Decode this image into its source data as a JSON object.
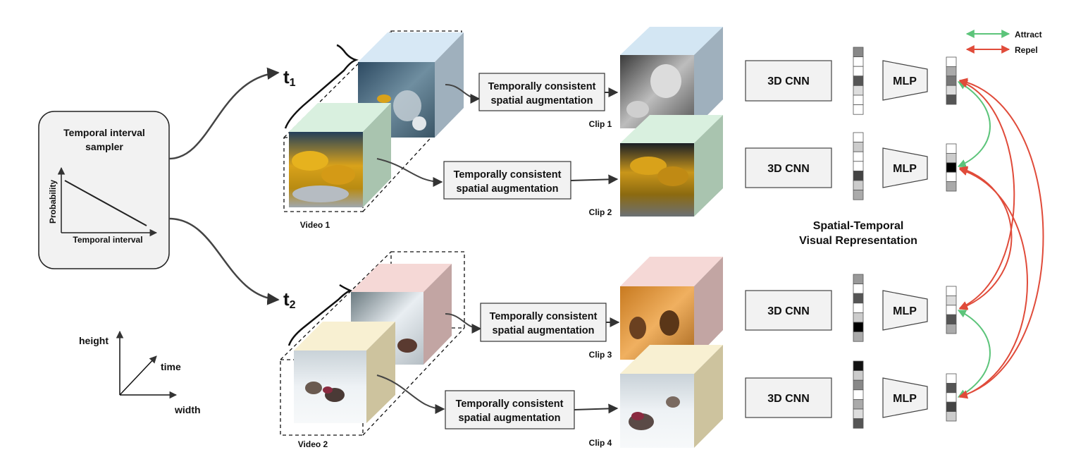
{
  "sampler": {
    "title_line1": "Temporal interval",
    "title_line2": "sampler",
    "y_axis_label": "Probability",
    "x_axis_label": "Temporal interval"
  },
  "intervals": {
    "t1": "t",
    "t1_sub": "1",
    "t2": "t",
    "t2_sub": "2"
  },
  "videos": {
    "video1": "Video 1",
    "video2": "Video 2"
  },
  "augmentation": {
    "line1": "Temporally consistent",
    "line2": "spatial augmentation"
  },
  "clips": [
    "Clip 1",
    "Clip 2",
    "Clip 3",
    "Clip 4"
  ],
  "encoder": {
    "cnn_label": "3D CNN",
    "mlp_label": "MLP"
  },
  "representation": {
    "line1": "Spatial-Temporal",
    "line2": "Visual Representation"
  },
  "legend": {
    "attract": "Attract",
    "repel": "Repel",
    "attract_color": "#5cc47a",
    "repel_color": "#e04b3a"
  },
  "axes": {
    "height": "height",
    "time": "time",
    "width": "width"
  },
  "feature_vectors": {
    "embedding_cells": [
      [
        "#888888",
        "#ffffff",
        "#ffffff",
        "#555555",
        "#dddddd",
        "#ffffff",
        "#ffffff"
      ],
      [
        "#ffffff",
        "#cccccc",
        "#ffffff",
        "#ffffff",
        "#444444",
        "#cccccc",
        "#aaaaaa"
      ],
      [
        "#999999",
        "#ffffff",
        "#555555",
        "#ffffff",
        "#cccccc",
        "#000000",
        "#aaaaaa"
      ],
      [
        "#111111",
        "#cccccc",
        "#888888",
        "#ffffff",
        "#aaaaaa",
        "#dddddd",
        "#555555"
      ]
    ],
    "projection_cells": [
      [
        "#ffffff",
        "#aaaaaa",
        "#777777",
        "#dddddd",
        "#555555"
      ],
      [
        "#ffffff",
        "#cccccc",
        "#000000",
        "#ffffff",
        "#aaaaaa"
      ],
      [
        "#ffffff",
        "#dddddd",
        "#ffffff",
        "#555555",
        "#aaaaaa"
      ],
      [
        "#ffffff",
        "#555555",
        "#ffffff",
        "#444444",
        "#cccccc"
      ]
    ]
  }
}
